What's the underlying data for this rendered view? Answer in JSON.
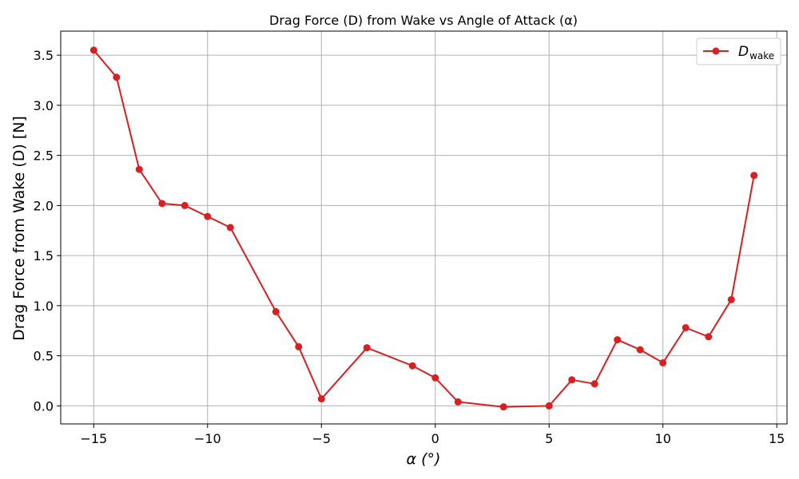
{
  "chart_data": {
    "type": "line",
    "title": "Drag Force (D) from Wake vs Angle of Attack (α)",
    "xlabel": "α (°)",
    "ylabel": "Drag Force from Wake (D) [N]",
    "xlim": [
      -16.45,
      15.45
    ],
    "ylim": [
      -0.18,
      3.74
    ],
    "xticks": [
      -15,
      -10,
      -5,
      0,
      5,
      10,
      15
    ],
    "xtick_labels": [
      "−15",
      "−10",
      "−5",
      "0",
      "5",
      "10",
      "15"
    ],
    "yticks": [
      0.0,
      0.5,
      1.0,
      1.5,
      2.0,
      2.5,
      3.0,
      3.5
    ],
    "ytick_labels": [
      "0.0",
      "0.5",
      "1.0",
      "1.5",
      "2.0",
      "2.5",
      "3.0",
      "3.5"
    ],
    "grid": true,
    "legend_position": "top-right",
    "series": [
      {
        "name": "D",
        "name_subscript": "wake",
        "color": "#d62021",
        "marker": "circle",
        "x": [
          -15,
          -14,
          -13,
          -12,
          -11,
          -10,
          -9,
          -7,
          -6,
          -5,
          -3,
          -1,
          0,
          1,
          3,
          5,
          6,
          7,
          8,
          9,
          10,
          11,
          12,
          13,
          14
        ],
        "y": [
          3.55,
          3.28,
          2.36,
          2.02,
          2.0,
          1.89,
          1.78,
          0.94,
          0.59,
          0.07,
          0.58,
          0.4,
          0.28,
          0.04,
          -0.01,
          0.0,
          0.26,
          0.22,
          0.66,
          0.56,
          0.43,
          0.78,
          0.69,
          1.06,
          2.3
        ]
      }
    ]
  }
}
